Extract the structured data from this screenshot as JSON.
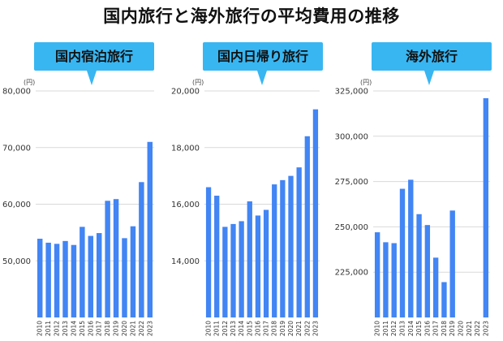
{
  "title": "国内旅行と海外旅行の平均費用の推移",
  "unit": "(円)",
  "colors": {
    "bar": "#4285f4",
    "callout": "#38b6f2",
    "grid": "#d9d9d9"
  },
  "chart_data": [
    {
      "type": "bar",
      "title": "国内宿泊旅行",
      "ylabel": "(円)",
      "ylim": [
        40000,
        80000
      ],
      "yticks": [
        50000,
        60000,
        70000,
        80000
      ],
      "ytick_labels": [
        "50,000",
        "60,000",
        "70,000",
        "80,000"
      ],
      "grid": true,
      "categories": [
        "2010",
        "2011",
        "2012",
        "2013",
        "2014",
        "2015",
        "2016",
        "2017",
        "2018",
        "2019",
        "2020",
        "2021",
        "2022",
        "2023"
      ],
      "values": [
        53900,
        53200,
        53000,
        53500,
        52800,
        56000,
        54400,
        54900,
        60600,
        60900,
        54000,
        56100,
        63900,
        71000
      ]
    },
    {
      "type": "bar",
      "title": "国内日帰り旅行",
      "ylabel": "(円)",
      "ylim": [
        12000,
        20000
      ],
      "yticks": [
        14000,
        16000,
        18000,
        20000
      ],
      "ytick_labels": [
        "14,000",
        "16,000",
        "18,000",
        "20,000"
      ],
      "grid": true,
      "categories": [
        "2010",
        "2011",
        "2012",
        "2013",
        "2014",
        "2015",
        "2016",
        "2017",
        "2018",
        "2019",
        "2020",
        "2021",
        "2022",
        "2023"
      ],
      "values": [
        16600,
        16300,
        15200,
        15300,
        15400,
        16100,
        15600,
        15800,
        16700,
        16850,
        17000,
        17300,
        18400,
        19350
      ]
    },
    {
      "type": "bar",
      "title": "海外旅行",
      "ylabel": "(円)",
      "ylim": [
        200000,
        325000
      ],
      "yticks": [
        225000,
        250000,
        275000,
        300000,
        325000
      ],
      "ytick_labels": [
        "225,000",
        "250,000",
        "275,000",
        "300,000",
        "325,000"
      ],
      "grid": true,
      "categories": [
        "2010",
        "2011",
        "2012",
        "2013",
        "2014",
        "2015",
        "2016",
        "2017",
        "2018",
        "2019",
        "2020",
        "2021",
        "2022",
        "2023"
      ],
      "values": [
        247000,
        241500,
        241000,
        271000,
        276000,
        257000,
        251000,
        233000,
        219500,
        259000,
        null,
        null,
        null,
        321000
      ]
    }
  ]
}
